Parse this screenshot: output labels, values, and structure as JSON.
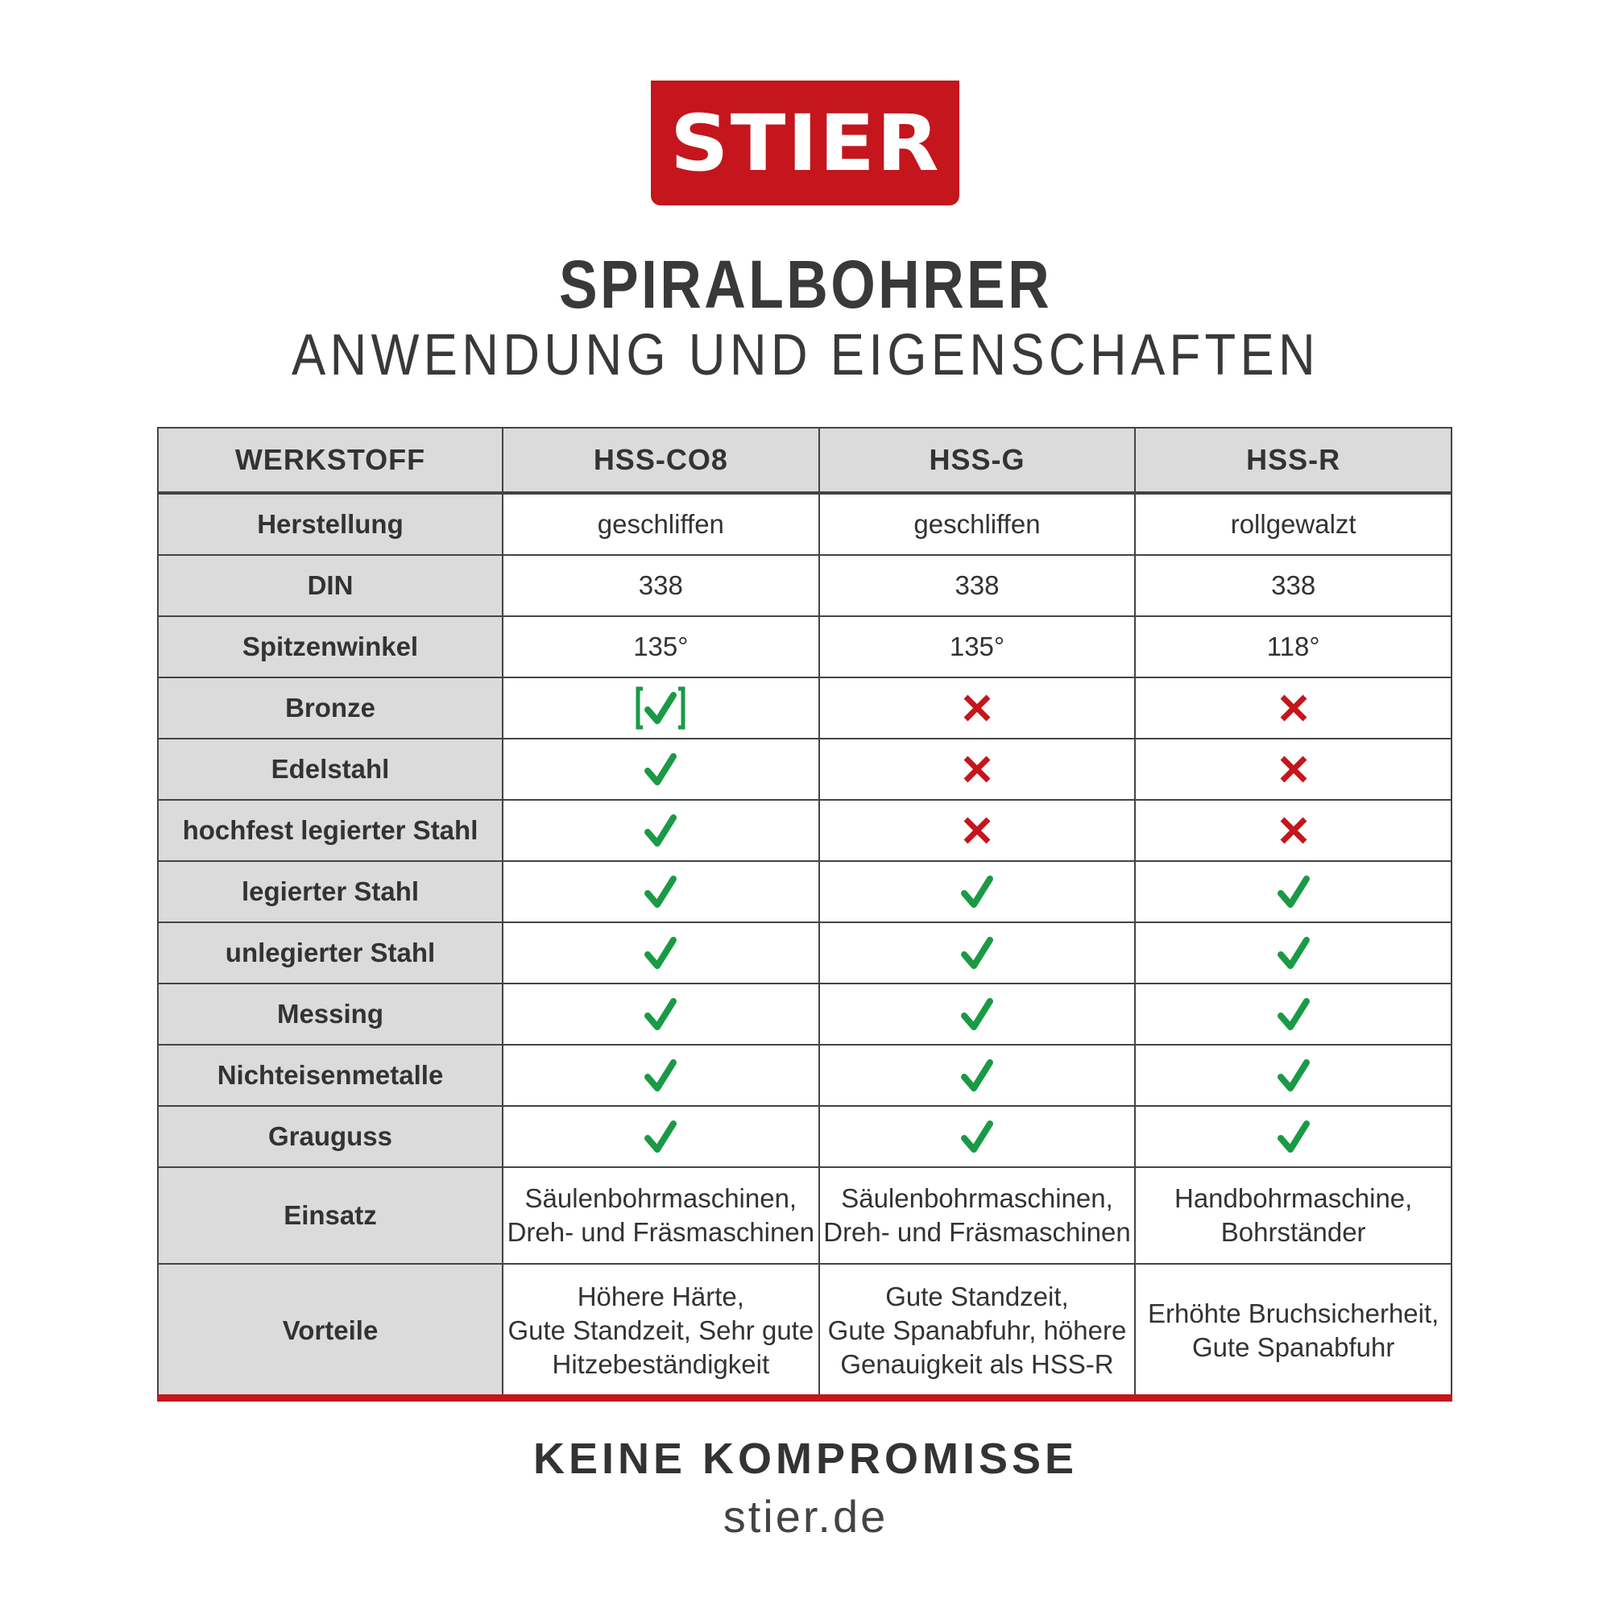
{
  "logo": {
    "text": "STIER",
    "color": "#c4161c"
  },
  "title": "SPIRALBOHRER",
  "subtitle": "ANWENDUNG UND EIGENSCHAFTEN",
  "table": {
    "headers": [
      "WERKSTOFF",
      "HSS-CO8",
      "HSS-G",
      "HSS-R"
    ],
    "rows": [
      {
        "label": "Herstellung",
        "cells": [
          "geschliffen",
          "geschliffen",
          "rollgewalzt"
        ]
      },
      {
        "label": "DIN",
        "cells": [
          "338",
          "338",
          "338"
        ]
      },
      {
        "label": "Spitzenwinkel",
        "cells": [
          "135°",
          "135°",
          "118°"
        ]
      },
      {
        "label": "Bronze",
        "marks": [
          "check-bracketed",
          "cross",
          "cross"
        ]
      },
      {
        "label": "Edelstahl",
        "marks": [
          "check",
          "cross",
          "cross"
        ]
      },
      {
        "label": "hochfest legierter Stahl",
        "marks": [
          "check",
          "cross",
          "cross"
        ]
      },
      {
        "label": "legierter Stahl",
        "marks": [
          "check",
          "check",
          "check"
        ]
      },
      {
        "label": "unlegierter Stahl",
        "marks": [
          "check",
          "check",
          "check"
        ]
      },
      {
        "label": "Messing",
        "marks": [
          "check",
          "check",
          "check"
        ]
      },
      {
        "label": "Nichteisenmetalle",
        "marks": [
          "check",
          "check",
          "check"
        ]
      },
      {
        "label": "Grauguss",
        "marks": [
          "check",
          "check",
          "check"
        ]
      },
      {
        "label": "Einsatz",
        "cells": [
          "Säulenbohrmaschinen,\nDreh- und Fräsmaschinen",
          "Säulenbohrmaschinen,\nDreh- und Fräsmaschinen",
          "Handbohrmaschine,\nBohrständer"
        ]
      },
      {
        "label": "Vorteile",
        "cells": [
          "Höhere Härte,\nGute Standzeit, Sehr gute\nHitzebeständigkeit",
          "Gute Standzeit,\nGute Spanabfuhr, höhere\nGenauigkeit als HSS-R",
          "Erhöhte Bruchsicherheit,\nGute Spanabfuhr"
        ]
      }
    ]
  },
  "colors": {
    "check": "#1a9a45",
    "cross": "#c4161c",
    "header_bg": "#dcdbdb"
  },
  "footer": {
    "slogan": "KEINE KOMPROMISSE",
    "website": "stier.de"
  }
}
